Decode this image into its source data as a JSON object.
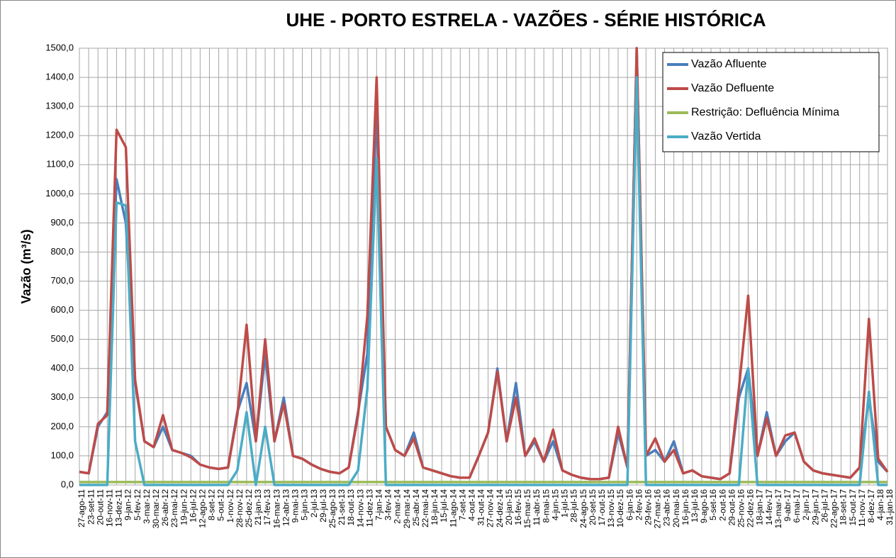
{
  "chart_data": {
    "type": "line",
    "title": "UHE - PORTO ESTRELA - VAZÕES - SÉRIE HISTÓRICA",
    "y_label": "Vazão (m³/s)",
    "categories": [
      "27-ago-11",
      "23-set-11",
      "20-out-11",
      "16-nov-11",
      "13-dez-11",
      "9-jan-12",
      "5-fev-12",
      "3-mar-12",
      "30-mar-12",
      "26-abr-12",
      "23-mai-12",
      "19-jun-12",
      "16-jul-12",
      "12-ago-12",
      "8-set-12",
      "5-out-12",
      "1-nov-12",
      "28-nov-12",
      "25-dez-12",
      "21-jan-13",
      "17-fev-13",
      "16-mar-13",
      "12-abr-13",
      "9-mai-13",
      "5-jun-13",
      "2-jul-13",
      "29-jul-13",
      "25-ago-13",
      "21-set-13",
      "18-out-13",
      "14-nov-13",
      "11-dez-13",
      "7-jan-14",
      "3-fev-14",
      "2-mar-14",
      "29-mar-14",
      "25-abr-14",
      "22-mai-14",
      "18-jun-14",
      "15-jul-14",
      "11-ago-14",
      "7-set-14",
      "4-out-14",
      "31-out-14",
      "27-nov-14",
      "24-dez-14",
      "20-jan-15",
      "16-fev-15",
      "15-mar-15",
      "11-abr-15",
      "8-mai-15",
      "4-jun-15",
      "1-jul-15",
      "28-jul-15",
      "24-ago-15",
      "20-set-15",
      "17-out-15",
      "13-nov-15",
      "10-dez-15",
      "6-jan-16",
      "2-fev-16",
      "29-fev-16",
      "27-mar-16",
      "23-abr-16",
      "20-mai-16",
      "16-jun-16",
      "13-jul-16",
      "9-ago-16",
      "5-set-16",
      "2-out-16",
      "29-out-16",
      "25-nov-16",
      "22-dez-16",
      "18-jan-17",
      "14-fev-17",
      "13-mar-17",
      "9-abr-17",
      "6-mai-17",
      "2-jun-17",
      "29-jun-17",
      "26-jul-17",
      "22-ago-17",
      "18-set-17",
      "15-out-17",
      "11-nov-17",
      "8-dez-17",
      "4-jan-18",
      "31-jan-18"
    ],
    "series": [
      {
        "name": "Vazão Afluente",
        "color": "#4a7ebb",
        "values": [
          45,
          40,
          200,
          250,
          1050,
          900,
          350,
          150,
          130,
          200,
          120,
          110,
          100,
          70,
          60,
          55,
          60,
          250,
          350,
          150,
          450,
          150,
          300,
          100,
          90,
          70,
          55,
          45,
          40,
          60,
          250,
          450,
          1300,
          200,
          120,
          100,
          180,
          60,
          50,
          40,
          30,
          25,
          25,
          100,
          180,
          400,
          150,
          350,
          100,
          150,
          80,
          150,
          50,
          35,
          25,
          20,
          20,
          25,
          180,
          60,
          1500,
          100,
          120,
          80,
          150,
          40,
          50,
          30,
          25,
          20,
          40,
          300,
          400,
          100,
          250,
          100,
          150,
          180,
          80,
          50,
          40,
          35,
          30,
          25,
          60,
          300,
          80,
          45
        ]
      },
      {
        "name": "Vazão Defluente",
        "color": "#be4b48",
        "values": [
          45,
          40,
          210,
          240,
          1220,
          1160,
          360,
          150,
          130,
          240,
          120,
          110,
          95,
          70,
          60,
          55,
          60,
          240,
          550,
          150,
          500,
          150,
          280,
          100,
          90,
          70,
          55,
          45,
          40,
          60,
          240,
          580,
          1400,
          200,
          120,
          100,
          160,
          60,
          50,
          40,
          30,
          25,
          25,
          100,
          180,
          390,
          150,
          300,
          100,
          160,
          80,
          190,
          50,
          35,
          25,
          20,
          20,
          25,
          200,
          60,
          1500,
          100,
          160,
          80,
          120,
          40,
          50,
          30,
          25,
          20,
          40,
          330,
          650,
          100,
          230,
          100,
          170,
          180,
          80,
          50,
          40,
          35,
          30,
          25,
          60,
          570,
          90,
          45
        ]
      },
      {
        "name": "Restrição: Defluência Mínima",
        "color": "#9bbb59",
        "values": [
          10,
          10,
          10,
          10,
          10,
          10,
          10,
          10,
          10,
          10,
          10,
          10,
          10,
          10,
          10,
          10,
          10,
          10,
          10,
          10,
          10,
          10,
          10,
          10,
          10,
          10,
          10,
          10,
          10,
          10,
          10,
          10,
          10,
          10,
          10,
          10,
          10,
          10,
          10,
          10,
          10,
          10,
          10,
          10,
          10,
          10,
          10,
          10,
          10,
          10,
          10,
          10,
          10,
          10,
          10,
          10,
          10,
          10,
          10,
          10,
          10,
          10,
          10,
          10,
          10,
          10,
          10,
          10,
          10,
          10,
          10,
          10,
          10,
          10,
          10,
          10,
          10,
          10,
          10,
          10,
          10,
          10,
          10,
          10,
          10,
          10,
          10,
          10
        ]
      },
      {
        "name": "Vazão Vertida",
        "color": "#4bacc6",
        "values": [
          0,
          0,
          0,
          0,
          970,
          960,
          150,
          0,
          0,
          0,
          0,
          0,
          0,
          0,
          0,
          0,
          0,
          50,
          250,
          0,
          200,
          0,
          0,
          0,
          0,
          0,
          0,
          0,
          0,
          0,
          50,
          330,
          1120,
          0,
          0,
          0,
          0,
          0,
          0,
          0,
          0,
          0,
          0,
          0,
          0,
          0,
          0,
          0,
          0,
          0,
          0,
          0,
          0,
          0,
          0,
          0,
          0,
          0,
          0,
          0,
          1400,
          0,
          0,
          0,
          0,
          0,
          0,
          0,
          0,
          0,
          0,
          0,
          400,
          0,
          0,
          0,
          0,
          0,
          0,
          0,
          0,
          0,
          0,
          0,
          0,
          320,
          0,
          0
        ]
      }
    ],
    "ylim": [
      0,
      1500
    ],
    "yticks": [
      {
        "value": 0,
        "label": "0,0"
      },
      {
        "value": 100,
        "label": "100,0"
      },
      {
        "value": 200,
        "label": "200,0"
      },
      {
        "value": 300,
        "label": "300,0"
      },
      {
        "value": 400,
        "label": "400,0"
      },
      {
        "value": 500,
        "label": "500,0"
      },
      {
        "value": 600,
        "label": "600,0"
      },
      {
        "value": 700,
        "label": "700,0"
      },
      {
        "value": 800,
        "label": "800,0"
      },
      {
        "value": 900,
        "label": "900,0"
      },
      {
        "value": 1000,
        "label": "1000,0"
      },
      {
        "value": 1100,
        "label": "1100,0"
      },
      {
        "value": 1200,
        "label": "1200,0"
      },
      {
        "value": 1300,
        "label": "1300,0"
      },
      {
        "value": 1400,
        "label": "1400,0"
      },
      {
        "value": 1500,
        "label": "1500,0"
      }
    ],
    "grid": true,
    "legend": "top-right"
  }
}
